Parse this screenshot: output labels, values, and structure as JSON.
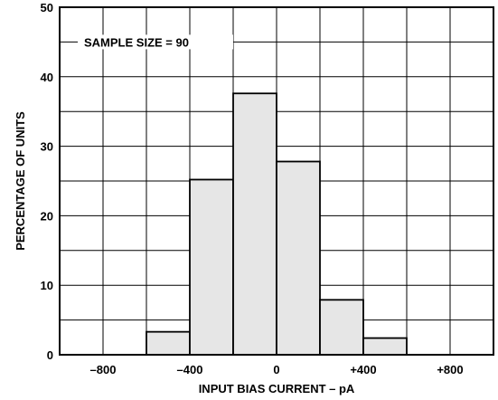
{
  "chart_data": {
    "type": "bar",
    "subtype": "histogram",
    "annotation": "SAMPLE SIZE = 90",
    "xlabel": "INPUT BIAS CURRENT – pA",
    "ylabel": "PERCENTAGE OF UNITS",
    "xlim": [
      -1000,
      1000
    ],
    "ylim": [
      0,
      50
    ],
    "x_ticks": [
      {
        "value": -800,
        "label": "–800"
      },
      {
        "value": -400,
        "label": "–400"
      },
      {
        "value": 0,
        "label": "0"
      },
      {
        "value": 400,
        "label": "+400"
      },
      {
        "value": 800,
        "label": "+800"
      }
    ],
    "y_ticks": [
      {
        "value": 0,
        "label": "0"
      },
      {
        "value": 10,
        "label": "10"
      },
      {
        "value": 20,
        "label": "20"
      },
      {
        "value": 30,
        "label": "30"
      },
      {
        "value": 40,
        "label": "40"
      },
      {
        "value": 50,
        "label": "50"
      }
    ],
    "x_grid_step": 200,
    "y_grid_step": 5,
    "grid": true,
    "bins": [
      {
        "x_start": -600,
        "x_end": -400,
        "value": 3.3
      },
      {
        "x_start": -400,
        "x_end": -200,
        "value": 25.2
      },
      {
        "x_start": -200,
        "x_end": 0,
        "value": 37.6
      },
      {
        "x_start": 0,
        "x_end": 200,
        "value": 27.8
      },
      {
        "x_start": 200,
        "x_end": 400,
        "value": 7.9
      },
      {
        "x_start": 400,
        "x_end": 600,
        "value": 2.4
      }
    ],
    "colors": {
      "bar_fill": "#e6e6e6",
      "line": "#000000",
      "grid": "#000000"
    }
  }
}
